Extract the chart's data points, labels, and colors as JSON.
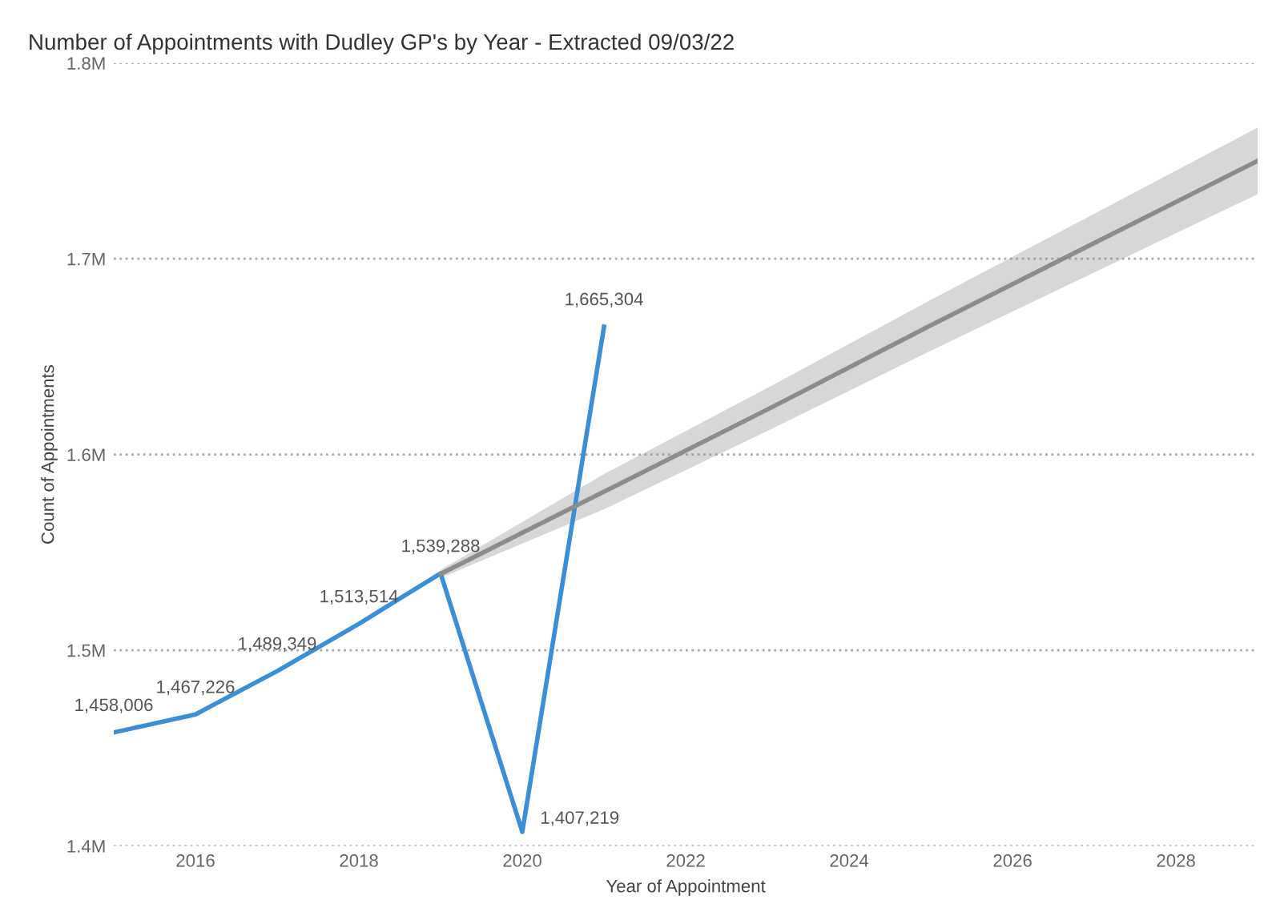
{
  "chart_data": {
    "type": "line",
    "title": "Number of Appointments with Dudley GP's by Year - Extracted 09/03/22",
    "xlabel": "Year of Appointment",
    "ylabel": "Count of Appointments",
    "series": [
      {
        "color": "#3b8ed8",
        "x": [
          2015,
          2016,
          2017,
          2018,
          2019,
          2020,
          2021
        ],
        "values": [
          1458006,
          1467226,
          1489349,
          1513514,
          1539288,
          1407219,
          1665304
        ],
        "value_labels": [
          "1,458,006",
          "1,467,226",
          "1,489,349",
          "1,513,514",
          "1,539,288",
          "1,407,219",
          "1,665,304"
        ]
      },
      {
        "type": "line",
        "color": "#8c8c8c",
        "x": [
          2019,
          2021,
          2023,
          2025,
          2027,
          2029
        ],
        "values": [
          1539000,
          1581000,
          1623000,
          1666000,
          1708000,
          1750000
        ],
        "lower": [
          1537000,
          1572000,
          1612000,
          1653000,
          1693000,
          1733000
        ],
        "upper": [
          1541000,
          1590000,
          1634000,
          1679000,
          1723000,
          1767000
        ]
      }
    ],
    "xlim": [
      2015,
      2029
    ],
    "xticks": [
      2016,
      2018,
      2020,
      2022,
      2024,
      2026,
      2028
    ],
    "ylim": [
      1400000,
      1800000
    ],
    "yticks": [
      {
        "value": 1400000,
        "label": "1.4M"
      },
      {
        "value": 1500000,
        "label": "1.5M"
      },
      {
        "value": 1600000,
        "label": "1.6M"
      },
      {
        "value": 1700000,
        "label": "1.7M"
      },
      {
        "value": 1800000,
        "label": "1.8M"
      }
    ],
    "grid": "y",
    "marker": "none",
    "line_style": "solid"
  }
}
